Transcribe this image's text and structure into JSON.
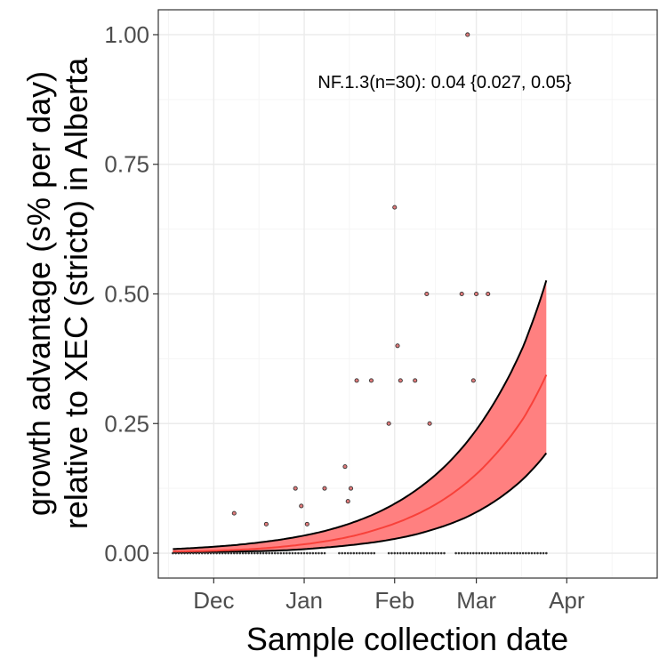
{
  "chart_data": {
    "type": "scatter",
    "title": "",
    "xlabel": "Sample collection date",
    "ylabel": [
      "growth advantage (s% per day)",
      "relative to XEC (stricto) in Alberta"
    ],
    "annotation": "NF.1.3(n=30): 0.04 {0.027, 0.05}",
    "x_range": [
      "2024-11-12",
      "2025-05-02"
    ],
    "ylim": [
      -0.048,
      1.048
    ],
    "x_ticks": [
      {
        "date": "2024-12-01",
        "label": "Dec"
      },
      {
        "date": "2025-01-01",
        "label": "Jan"
      },
      {
        "date": "2025-02-01",
        "label": "Feb"
      },
      {
        "date": "2025-03-01",
        "label": "Mar"
      },
      {
        "date": "2025-04-01",
        "label": "Apr"
      }
    ],
    "y_ticks": [
      {
        "value": 0.0,
        "label": "0.00"
      },
      {
        "value": 0.25,
        "label": "0.25"
      },
      {
        "value": 0.5,
        "label": "0.50"
      },
      {
        "value": 0.75,
        "label": "0.75"
      },
      {
        "value": 1.0,
        "label": "1.00"
      }
    ],
    "grid": true,
    "colors": {
      "ribbon": "#ff8080",
      "fit_line": "#f8413a",
      "bounds": "#000000",
      "point_fill": "#e07a7a",
      "point_stroke": "#333333",
      "grid_major": "#ebebeb",
      "grid_minor": "#f5f5f5",
      "panel_border": "#333333"
    },
    "fit": {
      "x": [
        "2024-11-17",
        "2024-11-27",
        "2024-12-07",
        "2024-12-17",
        "2024-12-27",
        "2025-01-06",
        "2025-01-16",
        "2025-01-26",
        "2025-02-05",
        "2025-02-15",
        "2025-02-25",
        "2025-03-07",
        "2025-03-17",
        "2025-03-25"
      ],
      "mid": [
        0.003,
        0.004,
        0.006,
        0.009,
        0.014,
        0.021,
        0.031,
        0.046,
        0.066,
        0.094,
        0.133,
        0.187,
        0.259,
        0.344
      ],
      "upper": [
        0.008,
        0.011,
        0.015,
        0.021,
        0.029,
        0.04,
        0.056,
        0.078,
        0.109,
        0.151,
        0.209,
        0.289,
        0.398,
        0.526
      ],
      "lower": [
        0.001,
        0.002,
        0.003,
        0.004,
        0.006,
        0.01,
        0.015,
        0.022,
        0.032,
        0.047,
        0.068,
        0.099,
        0.143,
        0.193
      ]
    },
    "points": [
      {
        "x": "2024-12-08",
        "y": 0.077
      },
      {
        "x": "2024-12-19",
        "y": 0.056
      },
      {
        "x": "2024-12-29",
        "y": 0.125
      },
      {
        "x": "2024-12-31",
        "y": 0.091
      },
      {
        "x": "2025-01-02",
        "y": 0.056
      },
      {
        "x": "2025-01-08",
        "y": 0.125
      },
      {
        "x": "2025-01-15",
        "y": 0.167
      },
      {
        "x": "2025-01-16",
        "y": 0.1
      },
      {
        "x": "2025-01-17",
        "y": 0.125
      },
      {
        "x": "2025-01-19",
        "y": 0.333
      },
      {
        "x": "2025-01-24",
        "y": 0.333
      },
      {
        "x": "2025-01-30",
        "y": 0.25
      },
      {
        "x": "2025-02-01",
        "y": 0.667
      },
      {
        "x": "2025-02-02",
        "y": 0.4
      },
      {
        "x": "2025-02-03",
        "y": 0.333
      },
      {
        "x": "2025-02-08",
        "y": 0.333
      },
      {
        "x": "2025-02-12",
        "y": 0.5
      },
      {
        "x": "2025-02-13",
        "y": 0.25
      },
      {
        "x": "2025-02-24",
        "y": 0.5
      },
      {
        "x": "2025-02-26",
        "y": 1.0
      },
      {
        "x": "2025-02-28",
        "y": 0.333
      },
      {
        "x": "2025-03-01",
        "y": 0.5
      },
      {
        "x": "2025-03-05",
        "y": 0.5
      }
    ],
    "zero_points": {
      "start": "2024-11-17",
      "end": "2025-03-25",
      "value": 0,
      "gaps": [
        [
          "2025-01-09",
          "2025-01-12"
        ],
        [
          "2025-01-26",
          "2025-01-29"
        ],
        [
          "2025-02-19",
          "2025-02-21"
        ]
      ]
    }
  }
}
